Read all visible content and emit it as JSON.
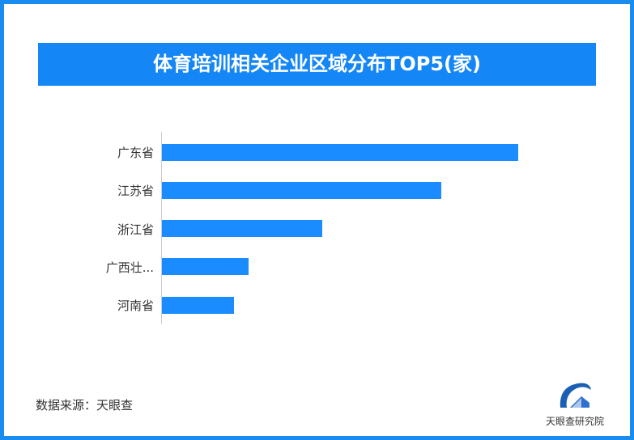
{
  "chart_data": {
    "type": "bar",
    "orientation": "horizontal",
    "title": "体育培训相关企业区域分布TOP5(家)",
    "categories": [
      "广东省",
      "江苏省",
      "浙江省",
      "广西壮...",
      "河南省"
    ],
    "values": [
      100,
      78.4,
      45,
      24.3,
      20.2
    ],
    "value_note": "relative (no axis or data labels shown)",
    "grid": false,
    "color": "#1a8cff"
  },
  "source": "数据来源：天眼查",
  "logo": {
    "text": "天眼查研究院"
  },
  "colors": {
    "frame": "#1a8cf0",
    "title_bg": "#1486f5"
  }
}
